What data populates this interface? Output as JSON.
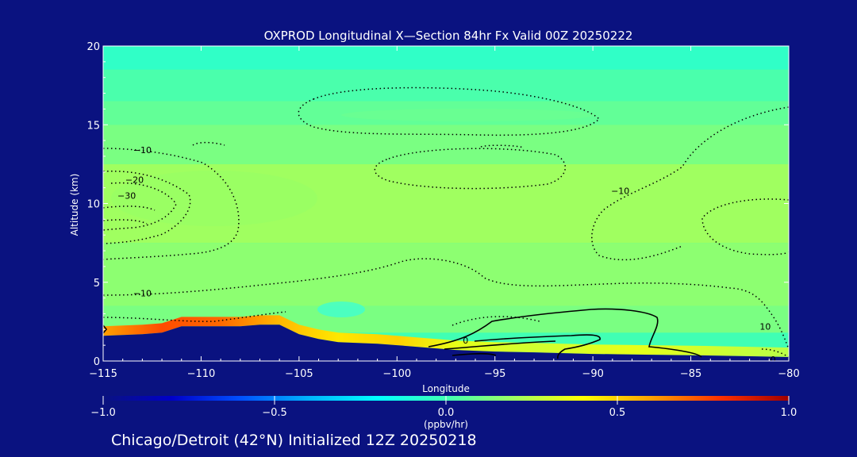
{
  "chart_data": {
    "type": "heatmap",
    "title": "OXPROD Longitudinal X—Section 84hr  Fx Valid 00Z 20250222",
    "xlabel": "Longitude",
    "ylabel": "Altitude (km)",
    "xlim": [
      -115,
      -80
    ],
    "ylim": [
      0,
      20
    ],
    "x_ticks": [
      -115,
      -110,
      -105,
      -100,
      -95,
      -90,
      -85,
      -80
    ],
    "x_tick_labels": [
      "−115",
      "−110",
      "−105",
      "−100",
      "−95",
      "−90",
      "−85",
      "−80"
    ],
    "y_ticks": [
      0,
      5,
      10,
      15,
      20
    ],
    "y_tick_labels": [
      "0",
      "5",
      "10",
      "15",
      "20"
    ],
    "grid": false,
    "colorbar": {
      "range": [
        -1.0,
        1.0
      ],
      "ticks": [
        -1.0,
        -0.5,
        0.0,
        0.5,
        1.0
      ],
      "tick_labels": [
        "−1.0",
        "−0.5",
        "0.0",
        "0.5",
        "1.0"
      ],
      "units_label": "(ppbv/hr)",
      "colors": [
        "#0a1280",
        "#0000c8",
        "#0050ff",
        "#00b4ff",
        "#00ffff",
        "#40ffb4",
        "#a0ff60",
        "#ffff00",
        "#ffa000",
        "#ff3000",
        "#a00000"
      ]
    },
    "field_bands": [
      {
        "alt_from": 18.5,
        "alt_to": 20,
        "value": -0.05
      },
      {
        "alt_from": 16.5,
        "alt_to": 18.5,
        "value": 0.02
      },
      {
        "alt_from": 15,
        "alt_to": 16.5,
        "value": 0.07
      },
      {
        "alt_from": 12.5,
        "alt_to": 15,
        "value": 0.12
      },
      {
        "alt_from": 7.5,
        "alt_to": 12.5,
        "value": 0.2
      },
      {
        "alt_from": 3.5,
        "alt_to": 7.5,
        "value": 0.16
      },
      {
        "alt_from": 1.8,
        "alt_to": 3.5,
        "value": 0.12
      }
    ],
    "surface_production": [
      {
        "lon": -115,
        "value": 0.6
      },
      {
        "lon": -112,
        "value": 0.75
      },
      {
        "lon": -109,
        "value": 0.7
      },
      {
        "lon": -106,
        "value": 0.55
      },
      {
        "lon": -103,
        "value": 0.45
      },
      {
        "lon": -100,
        "value": 0.5
      },
      {
        "lon": -97,
        "value": 0.35
      },
      {
        "lon": -93,
        "value": 0.3
      },
      {
        "lon": -88,
        "value": 0.35
      },
      {
        "lon": -84,
        "value": 0.3
      },
      {
        "lon": -80,
        "value": 0.25
      }
    ],
    "terrain": {
      "lon": [
        -115,
        -113,
        -112,
        -111,
        -110,
        -109,
        -108,
        -107,
        -106,
        -105,
        -104,
        -103,
        -102,
        -101,
        -100,
        -99,
        -98,
        -97,
        -96,
        -95,
        -93,
        -90,
        -87,
        -84,
        -82,
        -80
      ],
      "alt": [
        1.6,
        1.7,
        1.8,
        2.2,
        2.2,
        2.2,
        2.2,
        2.3,
        2.3,
        1.7,
        1.4,
        1.2,
        1.15,
        1.1,
        1.0,
        0.9,
        0.8,
        0.7,
        0.65,
        0.6,
        0.55,
        0.45,
        0.4,
        0.35,
        0.3,
        0.25
      ]
    },
    "contour_labels": [
      {
        "text": "−10",
        "lon": -113,
        "alt": 13.4
      },
      {
        "text": "−20",
        "lon": -113.4,
        "alt": 11.5
      },
      {
        "text": "−30",
        "lon": -113.8,
        "alt": 10.5
      },
      {
        "text": "−10",
        "lon": -113,
        "alt": 4.3
      },
      {
        "text": "−10",
        "lon": -88.6,
        "alt": 10.8
      },
      {
        "text": "0",
        "lon": -96.5,
        "alt": 1.3
      },
      {
        "text": "10",
        "lon": -81.2,
        "alt": 2.2
      },
      {
        "text": "0",
        "lon": -80.8,
        "alt": 0.1
      }
    ]
  },
  "footer": {
    "text": "Chicago/Detroit (42°N) Initialized 12Z 20250218"
  }
}
